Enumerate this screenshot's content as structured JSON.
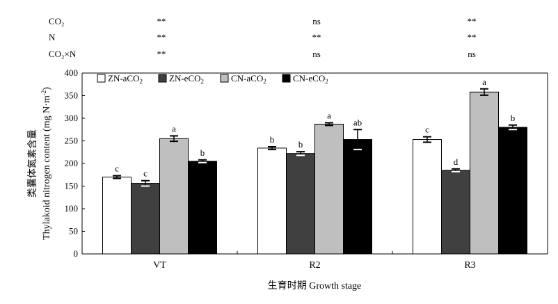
{
  "chart_data": {
    "type": "bar",
    "categories": [
      "VT",
      "R2",
      "R3"
    ],
    "series": [
      {
        "name": "ZN-aCO2",
        "color": "#ffffff",
        "values": [
          170,
          234,
          253
        ],
        "errors": [
          3,
          3,
          6
        ],
        "letters": [
          "c",
          "b",
          "c"
        ]
      },
      {
        "name": "ZN-eCO2",
        "color": "#404040",
        "values": [
          156,
          222,
          185
        ],
        "errors": [
          6,
          4,
          3
        ],
        "letters": [
          "c",
          "b",
          "d"
        ]
      },
      {
        "name": "CN-aCO2",
        "color": "#bfbfbf",
        "values": [
          255,
          287,
          358
        ],
        "errors": [
          6,
          3,
          7
        ],
        "letters": [
          "a",
          "a",
          "a"
        ]
      },
      {
        "name": "CN-eCO2",
        "color": "#000000",
        "values": [
          205,
          253,
          280
        ],
        "errors": [
          3,
          22,
          5
        ],
        "letters": [
          "b",
          "ab",
          "b"
        ]
      }
    ],
    "ylim": [
      0,
      400
    ],
    "yticks": [
      0,
      50,
      100,
      150,
      200,
      250,
      300,
      350,
      400
    ],
    "ylabel_cn": "类囊体氮素含量",
    "ylabel_en": "Thylakoid nitrogen content (mg N·m",
    "ylabel_unit_sup": "-2",
    "ylabel_close": ")",
    "xlabel": "生育时期 Growth stage",
    "legend_position": "top-left",
    "significance": {
      "rows": [
        {
          "label": "CO₂",
          "values": [
            "**",
            "ns",
            "**"
          ]
        },
        {
          "label": "N",
          "values": [
            "**",
            "**",
            "**"
          ]
        },
        {
          "label": "CO₂×N",
          "values": [
            "**",
            "ns",
            "ns"
          ]
        }
      ]
    }
  }
}
